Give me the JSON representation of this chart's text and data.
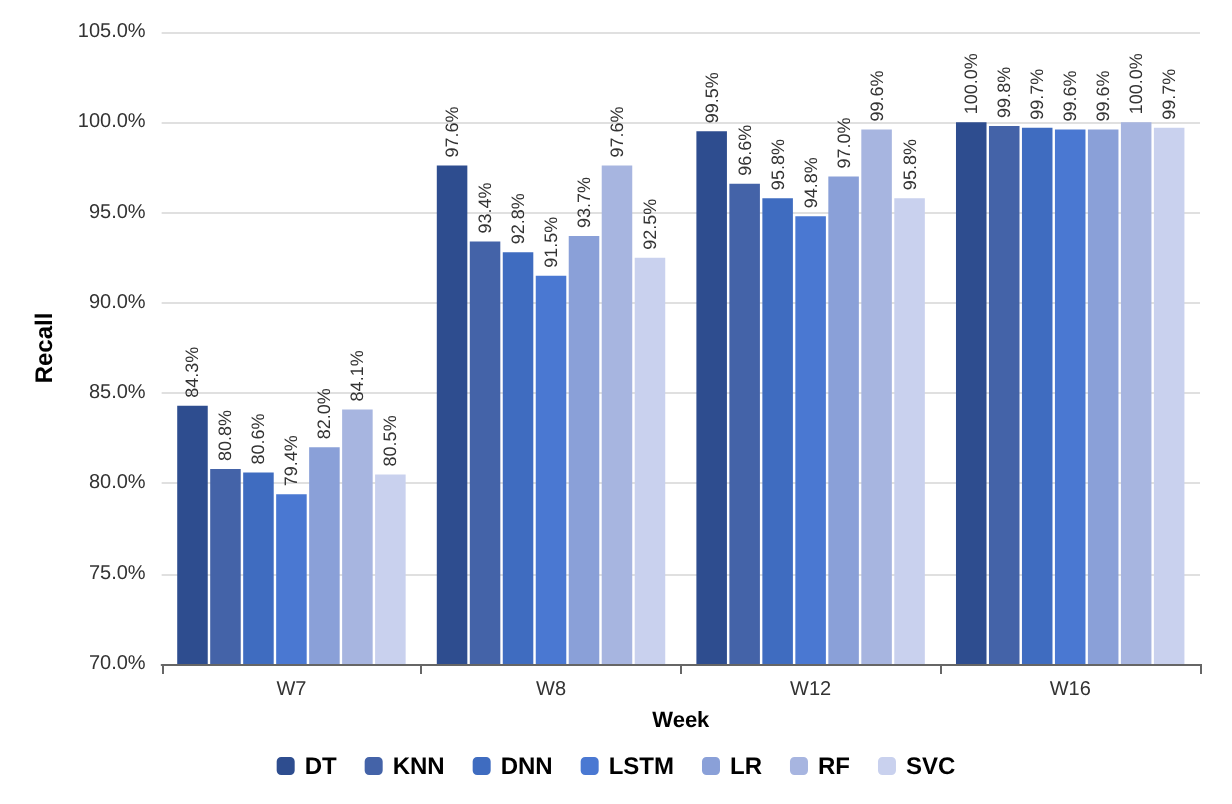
{
  "chart_data": {
    "type": "bar",
    "xlabel": "Week",
    "ylabel": "Recall",
    "categories": [
      "W7",
      "W8",
      "W12",
      "W16"
    ],
    "series": [
      {
        "name": "DT",
        "color": "#2e4d8f",
        "values": [
          84.3,
          97.6,
          99.5,
          100.0
        ],
        "value_labels": [
          "84.3%",
          "97.6%",
          "99.5%",
          "100.0%"
        ]
      },
      {
        "name": "KNN",
        "color": "#4463a8",
        "values": [
          80.8,
          93.4,
          96.6,
          99.8
        ],
        "value_labels": [
          "80.8%",
          "93.4%",
          "96.6%",
          "99.8%"
        ]
      },
      {
        "name": "DNN",
        "color": "#3f6cc0",
        "values": [
          80.6,
          92.8,
          95.8,
          99.7
        ],
        "value_labels": [
          "80.6%",
          "92.8%",
          "95.8%",
          "99.7%"
        ]
      },
      {
        "name": "LSTM",
        "color": "#4a78d2",
        "values": [
          79.4,
          91.5,
          94.8,
          99.6
        ],
        "value_labels": [
          "79.4%",
          "91.5%",
          "94.8%",
          "99.6%"
        ]
      },
      {
        "name": "LR",
        "color": "#8aa0d8",
        "values": [
          82.0,
          93.7,
          97.0,
          99.6
        ],
        "value_labels": [
          "82.0%",
          "93.7%",
          "97.0%",
          "99.6%"
        ]
      },
      {
        "name": "RF",
        "color": "#a7b5e0",
        "values": [
          84.1,
          97.6,
          99.6,
          100.0
        ],
        "value_labels": [
          "84.1%",
          "97.6%",
          "99.6%",
          "100.0%"
        ]
      },
      {
        "name": "SVC",
        "color": "#c9d1ee",
        "values": [
          80.5,
          92.5,
          95.8,
          99.7
        ],
        "value_labels": [
          "80.5%",
          "92.5%",
          "95.8%",
          "99.7%"
        ]
      }
    ],
    "ylim": [
      70,
      105
    ],
    "yticks": [
      {
        "value": 70,
        "label": "70.0%"
      },
      {
        "value": 75,
        "label": "75.0%"
      },
      {
        "value": 80,
        "label": "80.0%"
      },
      {
        "value": 85,
        "label": "85.0%"
      },
      {
        "value": 90,
        "label": "90.0%"
      },
      {
        "value": 95,
        "label": "95.0%"
      },
      {
        "value": 100,
        "label": "100.0%"
      },
      {
        "value": 105,
        "label": "105.0%"
      }
    ],
    "grid": "y",
    "legend": "bottom"
  }
}
